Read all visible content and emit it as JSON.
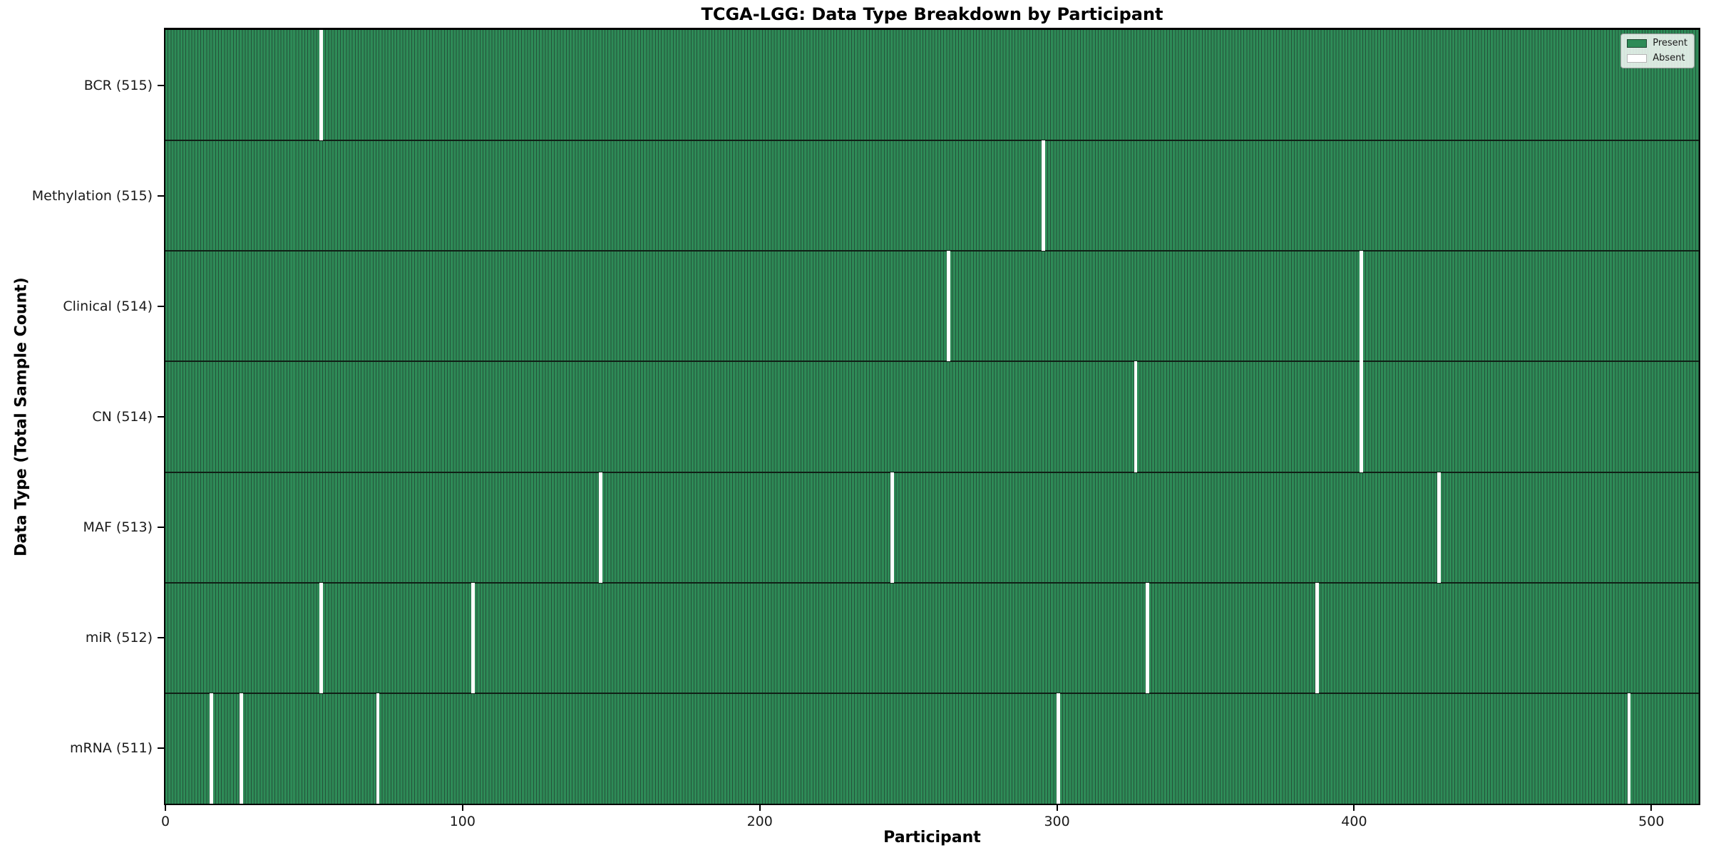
{
  "chart_data": {
    "type": "heatmap",
    "title": "TCGA-LGG: Data Type Breakdown by Participant",
    "xlabel": "Participant",
    "ylabel": "Data Type (Total Sample Count)",
    "x_ticks": [
      0,
      100,
      200,
      300,
      400,
      500
    ],
    "x_range": [
      0,
      516
    ],
    "n_participants": 516,
    "grid": false,
    "legend_position": "upper right",
    "colors": {
      "present": "#2e8b57",
      "bar_edge": "#24523a",
      "row_divider": "#102016",
      "absent": "#ffffff",
      "axis": "#000000",
      "text": "#1a1a1a"
    },
    "legend": [
      {
        "label": "Present",
        "color": "#2e8b57"
      },
      {
        "label": "Absent",
        "color": "#ffffff"
      }
    ],
    "rows": [
      {
        "key": "bcr",
        "label": "BCR (515)",
        "data_type": "BCR",
        "total_samples": 515,
        "present_count": 515,
        "absent_participants": [
          52
        ]
      },
      {
        "key": "methylation",
        "label": "Methylation (515)",
        "data_type": "Methylation",
        "total_samples": 515,
        "present_count": 515,
        "absent_participants": [
          295
        ]
      },
      {
        "key": "clinical",
        "label": "Clinical (514)",
        "data_type": "Clinical",
        "total_samples": 514,
        "present_count": 514,
        "absent_participants": [
          263,
          402
        ]
      },
      {
        "key": "cn",
        "label": "CN (514)",
        "data_type": "CN",
        "total_samples": 514,
        "present_count": 514,
        "absent_participants": [
          326,
          402
        ]
      },
      {
        "key": "maf",
        "label": "MAF (513)",
        "data_type": "MAF",
        "total_samples": 513,
        "present_count": 513,
        "absent_participants": [
          146,
          244,
          428
        ]
      },
      {
        "key": "mir",
        "label": "miR (512)",
        "data_type": "miR",
        "total_samples": 512,
        "present_count": 512,
        "absent_participants": [
          52,
          103,
          330,
          387
        ]
      },
      {
        "key": "mrna",
        "label": "mRNA (511)",
        "data_type": "mRNA",
        "total_samples": 511,
        "present_count": 511,
        "absent_participants": [
          15,
          25,
          71,
          300,
          492
        ]
      }
    ]
  }
}
